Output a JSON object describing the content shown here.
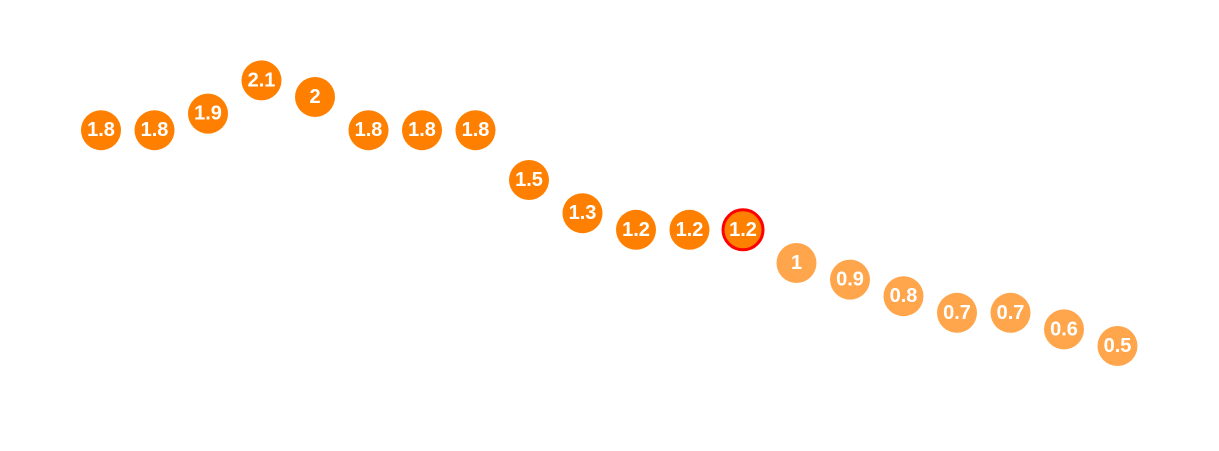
{
  "chart_data": {
    "type": "scatter",
    "x": [
      1,
      2,
      3,
      4,
      5,
      6,
      7,
      8,
      9,
      10,
      11,
      12,
      13,
      14,
      15,
      16,
      17,
      18,
      19,
      20
    ],
    "values": [
      1.8,
      1.8,
      1.9,
      2.1,
      2,
      1.8,
      1.8,
      1.8,
      1.5,
      1.3,
      1.2,
      1.2,
      1.2,
      1,
      0.9,
      0.8,
      0.7,
      0.7,
      0.6,
      0.5
    ],
    "labels": [
      "1.8",
      "1.8",
      "1.9",
      "2.1",
      "2",
      "1.8",
      "1.8",
      "1.8",
      "1.5",
      "1.3",
      "1.2",
      "1.2",
      "1.2",
      "1",
      "0.9",
      "0.8",
      "0.7",
      "0.7",
      "0.6",
      "0.5"
    ],
    "ylim": [
      0,
      3
    ],
    "highlight_index": 12,
    "grid": false,
    "legend": "none",
    "colors": {
      "primary": "#ff8000",
      "secondary": "#ffa64d",
      "highlight_border": "#ff0000",
      "label": "#ffffff"
    }
  }
}
